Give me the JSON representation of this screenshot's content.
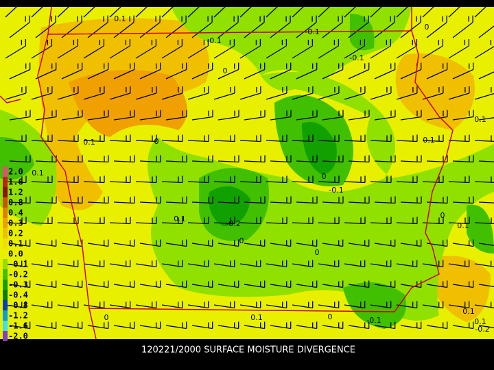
{
  "caption": "120221/2000 SURFACE MOISTURE DIVERGENCE",
  "legend": [
    {
      "label": "2.0",
      "color": "#e05070"
    },
    {
      "label": "1.6",
      "color": "#c02020"
    },
    {
      "label": "1.2",
      "color": "#901000"
    },
    {
      "label": "0.8",
      "color": "#d05000"
    },
    {
      "label": "0.4",
      "color": "#e08000"
    },
    {
      "label": "0.3",
      "color": "#f0a000"
    },
    {
      "label": "0.2",
      "color": "#f0c000"
    },
    {
      "label": "0.1",
      "color": "#f0e000"
    },
    {
      "label": "0.0",
      "color": "#e8f000"
    },
    {
      "label": "-0.1",
      "color": "#90e000"
    },
    {
      "label": "-0.2",
      "color": "#40c000"
    },
    {
      "label": "-0.3",
      "color": "#10a000"
    },
    {
      "label": "-0.4",
      "color": "#008000"
    },
    {
      "label": "-0.8",
      "color": "#0040c0"
    },
    {
      "label": "-1.2",
      "color": "#00a0e0"
    },
    {
      "label": "-1.6",
      "color": "#40e0f0"
    },
    {
      "label": "-2.0",
      "color": "#8040c0"
    }
  ],
  "contour_labels": [
    "0.1",
    "-0.1",
    "0",
    "-0.1",
    "-0.1",
    "0",
    "0.1",
    "0",
    "0.1",
    "0",
    "-0.1",
    "0.1",
    "-0.2",
    "0",
    "0.1",
    "0",
    "0",
    "0.1",
    "0.1",
    "0.1",
    "0",
    "0.1",
    "0",
    "-0.1",
    "0.1",
    "-0.2"
  ]
}
